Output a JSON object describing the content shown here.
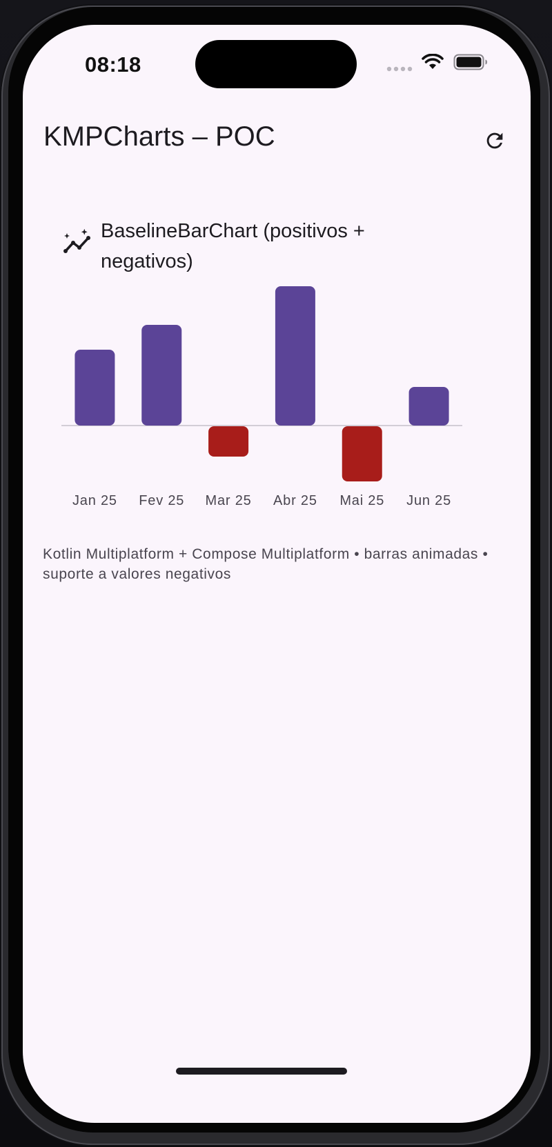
{
  "status_bar": {
    "time": "08:18"
  },
  "app_bar": {
    "title": "KMPCharts – POC",
    "refresh_icon": "refresh-icon"
  },
  "card": {
    "icon": "sparkle-line-chart-icon",
    "title": "BaselineBarChart (positivos + negativos)"
  },
  "caption": "Kotlin Multiplatform + Compose Multiplatform • barras animadas • suporte a valores negativos",
  "colors": {
    "positive": "#5b4497",
    "negative": "#a81d1a",
    "baseline": "#c4c0ca",
    "background": "#fbf5fc"
  },
  "chart_data": {
    "type": "bar",
    "categories": [
      "Jan 25",
      "Fev 25",
      "Mar 25",
      "Abr 25",
      "Mai 25",
      "Jun 25"
    ],
    "values": [
      55,
      73,
      -22,
      101,
      -40,
      28
    ],
    "baseline": 0,
    "ylim": [
      -45,
      105
    ],
    "grid": false,
    "title": "",
    "xlabel": "",
    "ylabel": ""
  }
}
